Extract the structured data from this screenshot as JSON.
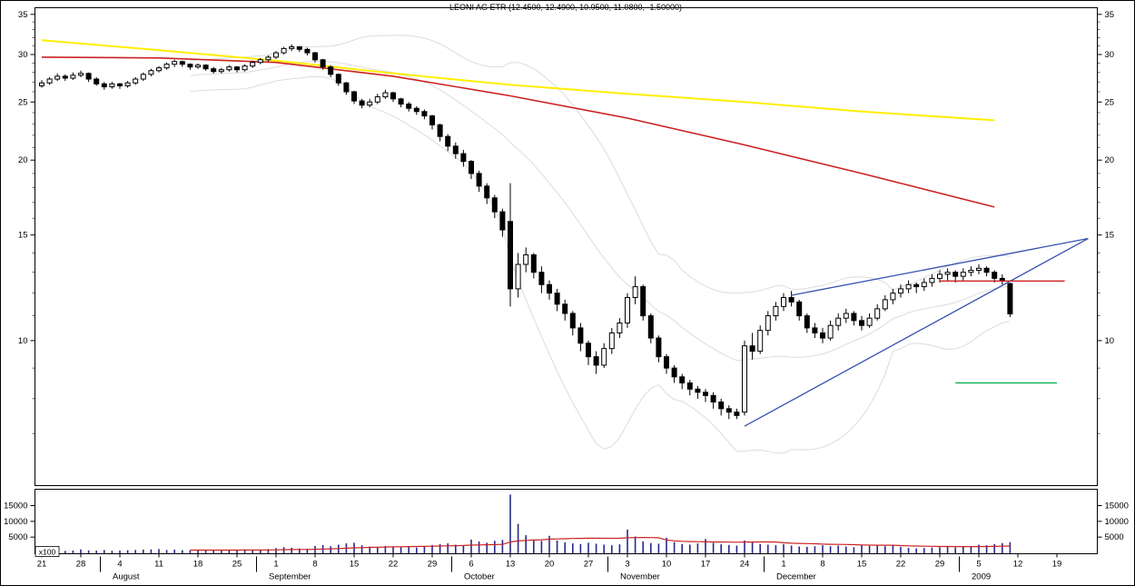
{
  "title": "LEONI AG ETR (12.4500, 12.4900, 10.9500, 11.0800, -1.50000)",
  "chart_data": {
    "type": "candlestick",
    "title": "LEONI AG ETR (12.4500, 12.4900, 10.9500, 11.0800, -1.50000)",
    "instrument": "LEONI AG ETR",
    "last_quote": {
      "open": 12.45,
      "high": 12.49,
      "low": 10.95,
      "close": 11.08,
      "change": -1.5
    },
    "y_axis": {
      "scale": "log",
      "ticks": [
        35,
        30,
        25,
        20,
        15,
        10
      ]
    },
    "volume_axis": {
      "ticks": [
        15000,
        10000,
        5000
      ],
      "unit_label": "x100"
    },
    "x_axis": {
      "week_ticks": [
        "21",
        "28",
        "4",
        "11",
        "18",
        "25",
        "1",
        "8",
        "15",
        "22",
        "29",
        "6",
        "13",
        "20",
        "27",
        "3",
        "10",
        "17",
        "24",
        "1",
        "8",
        "15",
        "22",
        "29",
        "5",
        "12",
        "19"
      ],
      "month_labels": [
        {
          "label": "August",
          "week": 2
        },
        {
          "label": "September",
          "week": 6
        },
        {
          "label": "October",
          "week": 11
        },
        {
          "label": "November",
          "week": 15
        },
        {
          "label": "December",
          "week": 19
        },
        {
          "label": "2009",
          "week": 24
        }
      ]
    },
    "colors": {
      "up_candle": "#ffffff",
      "down_candle": "#000000",
      "yellow_ma": "#ffee00",
      "red_ma": "#cc2222",
      "band": "#dcdcdc",
      "trendline": "#3850b0",
      "volume": "#28288c",
      "volume_ma": "#cc2222",
      "hline_red": "#cc2222",
      "hline_green": "#00b050"
    },
    "candles": [
      [
        26.6,
        27.2,
        26.4,
        26.9
      ],
      [
        26.9,
        27.5,
        26.7,
        27.3
      ],
      [
        27.3,
        27.9,
        27.1,
        27.6
      ],
      [
        27.6,
        27.8,
        27.1,
        27.4
      ],
      [
        27.4,
        28.0,
        27.2,
        27.7
      ],
      [
        27.7,
        28.2,
        27.5,
        27.9
      ],
      [
        27.9,
        28.0,
        27.0,
        27.3
      ],
      [
        27.3,
        27.5,
        26.6,
        26.8
      ],
      [
        26.8,
        27.0,
        26.2,
        26.5
      ],
      [
        26.5,
        27.0,
        26.3,
        26.8
      ],
      [
        26.8,
        26.9,
        26.3,
        26.6
      ],
      [
        26.6,
        27.1,
        26.4,
        26.9
      ],
      [
        26.9,
        27.5,
        26.7,
        27.3
      ],
      [
        27.3,
        28.0,
        27.1,
        27.8
      ],
      [
        27.8,
        28.4,
        27.6,
        28.2
      ],
      [
        28.2,
        28.7,
        28.0,
        28.5
      ],
      [
        28.5,
        29.1,
        28.3,
        28.9
      ],
      [
        28.9,
        29.4,
        28.6,
        29.2
      ],
      [
        29.2,
        29.3,
        28.6,
        28.9
      ],
      [
        28.9,
        29.0,
        28.3,
        28.6
      ],
      [
        28.6,
        29.0,
        28.4,
        28.8
      ],
      [
        28.8,
        28.9,
        28.2,
        28.4
      ],
      [
        28.4,
        28.6,
        27.9,
        28.1
      ],
      [
        28.1,
        28.5,
        27.9,
        28.3
      ],
      [
        28.3,
        28.8,
        28.1,
        28.6
      ],
      [
        28.6,
        28.7,
        28.0,
        28.3
      ],
      [
        28.3,
        28.9,
        28.1,
        28.7
      ],
      [
        28.7,
        29.3,
        28.5,
        29.1
      ],
      [
        29.1,
        29.6,
        28.9,
        29.4
      ],
      [
        29.4,
        29.9,
        29.2,
        29.7
      ],
      [
        29.7,
        30.4,
        29.5,
        30.2
      ],
      [
        30.2,
        30.9,
        30.0,
        30.7
      ],
      [
        30.7,
        31.2,
        30.4,
        30.9
      ],
      [
        30.9,
        31.0,
        30.3,
        30.6
      ],
      [
        30.6,
        30.8,
        29.9,
        30.2
      ],
      [
        30.2,
        30.3,
        29.1,
        29.4
      ],
      [
        29.4,
        29.5,
        28.3,
        28.6
      ],
      [
        28.6,
        28.8,
        27.5,
        27.8
      ],
      [
        27.8,
        27.9,
        26.6,
        26.9
      ],
      [
        26.9,
        27.0,
        25.7,
        26.0
      ],
      [
        26.0,
        26.1,
        24.8,
        25.1
      ],
      [
        25.1,
        25.3,
        24.4,
        24.7
      ],
      [
        24.7,
        25.3,
        24.5,
        25.0
      ],
      [
        25.0,
        25.8,
        24.8,
        25.5
      ],
      [
        25.5,
        26.2,
        25.3,
        25.9
      ],
      [
        25.9,
        26.0,
        25.0,
        25.3
      ],
      [
        25.3,
        25.4,
        24.5,
        24.8
      ],
      [
        24.8,
        25.0,
        24.1,
        24.4
      ],
      [
        24.4,
        24.6,
        23.8,
        24.1
      ],
      [
        24.1,
        24.3,
        23.4,
        23.7
      ],
      [
        23.7,
        23.8,
        22.5,
        22.9
      ],
      [
        22.9,
        23.0,
        21.5,
        21.9
      ],
      [
        21.9,
        22.1,
        20.7,
        21.1
      ],
      [
        21.1,
        21.4,
        20.1,
        20.5
      ],
      [
        20.5,
        20.8,
        19.5,
        19.9
      ],
      [
        19.9,
        20.0,
        18.6,
        19.0
      ],
      [
        19.0,
        19.2,
        17.7,
        18.1
      ],
      [
        18.1,
        18.3,
        16.9,
        17.3
      ],
      [
        17.3,
        17.5,
        16.0,
        16.4
      ],
      [
        16.4,
        16.6,
        14.9,
        15.3
      ],
      [
        15.8,
        18.3,
        11.4,
        12.2
      ],
      [
        12.2,
        14.0,
        11.8,
        13.4
      ],
      [
        13.4,
        14.3,
        13.0,
        13.9
      ],
      [
        13.9,
        14.0,
        12.7,
        13.0
      ],
      [
        13.0,
        13.3,
        12.0,
        12.4
      ],
      [
        12.4,
        12.6,
        11.7,
        12.0
      ],
      [
        12.0,
        12.2,
        11.2,
        11.5
      ],
      [
        11.5,
        11.7,
        10.8,
        11.1
      ],
      [
        11.1,
        11.2,
        10.2,
        10.5
      ],
      [
        10.5,
        10.7,
        9.6,
        9.9
      ],
      [
        9.9,
        10.0,
        9.1,
        9.4
      ],
      [
        9.4,
        9.6,
        8.8,
        9.1
      ],
      [
        9.1,
        9.9,
        9.0,
        9.7
      ],
      [
        9.7,
        10.5,
        9.5,
        10.3
      ],
      [
        10.3,
        10.9,
        10.1,
        10.7
      ],
      [
        10.7,
        12.0,
        10.5,
        11.8
      ],
      [
        11.8,
        12.8,
        11.5,
        12.3
      ],
      [
        12.3,
        12.4,
        10.8,
        11.0
      ],
      [
        11.0,
        11.1,
        9.9,
        10.1
      ],
      [
        10.1,
        10.2,
        9.2,
        9.4
      ],
      [
        9.4,
        9.5,
        8.8,
        9.0
      ],
      [
        9.0,
        9.1,
        8.5,
        8.7
      ],
      [
        8.7,
        8.8,
        8.3,
        8.5
      ],
      [
        8.5,
        8.6,
        8.1,
        8.3
      ],
      [
        8.3,
        8.4,
        8.0,
        8.2
      ],
      [
        8.2,
        8.3,
        7.9,
        8.1
      ],
      [
        8.1,
        8.2,
        7.7,
        7.9
      ],
      [
        7.9,
        8.0,
        7.5,
        7.7
      ],
      [
        7.7,
        7.8,
        7.4,
        7.6
      ],
      [
        7.6,
        7.7,
        7.4,
        7.5
      ],
      [
        7.6,
        10.0,
        7.5,
        9.8
      ],
      [
        9.8,
        10.3,
        9.3,
        9.6
      ],
      [
        9.6,
        10.6,
        9.5,
        10.4
      ],
      [
        10.4,
        11.2,
        10.2,
        11.0
      ],
      [
        11.0,
        11.6,
        10.8,
        11.4
      ],
      [
        11.4,
        12.0,
        11.2,
        11.8
      ],
      [
        11.8,
        12.1,
        11.4,
        11.6
      ],
      [
        11.6,
        11.7,
        10.8,
        11.0
      ],
      [
        11.0,
        11.1,
        10.3,
        10.5
      ],
      [
        10.5,
        10.7,
        10.1,
        10.3
      ],
      [
        10.3,
        10.5,
        9.9,
        10.1
      ],
      [
        10.1,
        10.8,
        10.0,
        10.6
      ],
      [
        10.6,
        11.1,
        10.4,
        10.9
      ],
      [
        10.9,
        11.3,
        10.7,
        11.1
      ],
      [
        11.1,
        11.2,
        10.6,
        10.8
      ],
      [
        10.8,
        11.0,
        10.4,
        10.6
      ],
      [
        10.6,
        11.1,
        10.5,
        10.9
      ],
      [
        10.9,
        11.5,
        10.8,
        11.3
      ],
      [
        11.3,
        11.9,
        11.2,
        11.7
      ],
      [
        11.7,
        12.2,
        11.5,
        12.0
      ],
      [
        12.0,
        12.4,
        11.8,
        12.2
      ],
      [
        12.2,
        12.6,
        12.0,
        12.4
      ],
      [
        12.4,
        12.5,
        12.0,
        12.3
      ],
      [
        12.3,
        12.7,
        12.1,
        12.5
      ],
      [
        12.5,
        12.9,
        12.3,
        12.7
      ],
      [
        12.7,
        13.1,
        12.5,
        12.9
      ],
      [
        12.9,
        13.2,
        12.6,
        13.0
      ],
      [
        13.0,
        13.1,
        12.5,
        12.8
      ],
      [
        12.8,
        13.2,
        12.6,
        13.0
      ],
      [
        13.0,
        13.3,
        12.8,
        13.1
      ],
      [
        13.1,
        13.4,
        12.9,
        13.2
      ],
      [
        13.2,
        13.3,
        12.8,
        13.0
      ],
      [
        13.0,
        13.1,
        12.5,
        12.7
      ],
      [
        12.7,
        12.9,
        12.4,
        12.58
      ],
      [
        12.45,
        12.49,
        10.95,
        11.08
      ]
    ],
    "volume": [
      900,
      700,
      800,
      600,
      750,
      1100,
      800,
      700,
      900,
      650,
      700,
      850,
      900,
      1000,
      1100,
      1200,
      900,
      1000,
      850,
      800,
      750,
      900,
      820,
      700,
      880,
      900,
      1100,
      1000,
      950,
      1200,
      1500,
      1800,
      1600,
      1400,
      1300,
      2200,
      2500,
      2100,
      2600,
      3000,
      3200,
      2400,
      2000,
      1900,
      2200,
      2000,
      1800,
      2100,
      1700,
      1900,
      2500,
      2800,
      3000,
      2600,
      2400,
      4200,
      3600,
      3200,
      3800,
      4100,
      18500,
      9200,
      5600,
      4200,
      3800,
      5400,
      3900,
      3300,
      3000,
      2800,
      3200,
      2900,
      2600,
      2400,
      2700,
      7400,
      5200,
      3600,
      3100,
      2900,
      4800,
      3400,
      2800,
      2600,
      3000,
      4400,
      3200,
      2700,
      2500,
      2300,
      3900,
      3300,
      2800,
      2600,
      2400,
      2800,
      2300,
      2000,
      1900,
      2100,
      2400,
      2100,
      2300,
      2000,
      1800,
      2600,
      2200,
      2400,
      2100,
      2300,
      1900,
      1600,
      1400,
      1500,
      1700,
      1800,
      2000,
      1700,
      1900,
      2100,
      2600,
      2400,
      2800,
      3100,
      3400
    ],
    "overlays": {
      "yellow_ma": {
        "name": "long-term moving average",
        "color": "#ffee00",
        "points": [
          [
            0,
            31.7
          ],
          [
            15,
            30.5
          ],
          [
            30,
            29.3
          ],
          [
            45,
            27.9
          ],
          [
            60,
            26.7
          ],
          [
            75,
            25.8
          ],
          [
            90,
            25.0
          ],
          [
            105,
            24.1
          ],
          [
            122,
            23.3
          ]
        ]
      },
      "red_ma": {
        "name": "medium-term moving average",
        "color": "#cc2222",
        "points": [
          [
            0,
            29.7
          ],
          [
            15,
            29.6
          ],
          [
            30,
            29.1
          ],
          [
            45,
            27.6
          ],
          [
            60,
            25.6
          ],
          [
            75,
            23.5
          ],
          [
            90,
            21.2
          ],
          [
            105,
            19.0
          ],
          [
            122,
            16.7
          ]
        ]
      },
      "bollinger": {
        "window": 20,
        "stdev": 2,
        "color": "#dcdcdc"
      },
      "trendlines": [
        {
          "name": "wedge-lower",
          "color": "#3850b0",
          "from": [
            90,
            7.2
          ],
          "to": [
            134,
            14.8
          ]
        },
        {
          "name": "wedge-upper",
          "color": "#3850b0",
          "from": [
            96,
            11.9
          ],
          "to": [
            134,
            14.8
          ]
        }
      ],
      "hlines": [
        {
          "name": "resistance-line",
          "color": "#cc2222",
          "price": 12.57,
          "from_day": 115,
          "to_day": 131
        },
        {
          "name": "support-line",
          "color": "#00b050",
          "price": 8.5,
          "from_day": 117,
          "to_day": 130
        }
      ]
    }
  }
}
